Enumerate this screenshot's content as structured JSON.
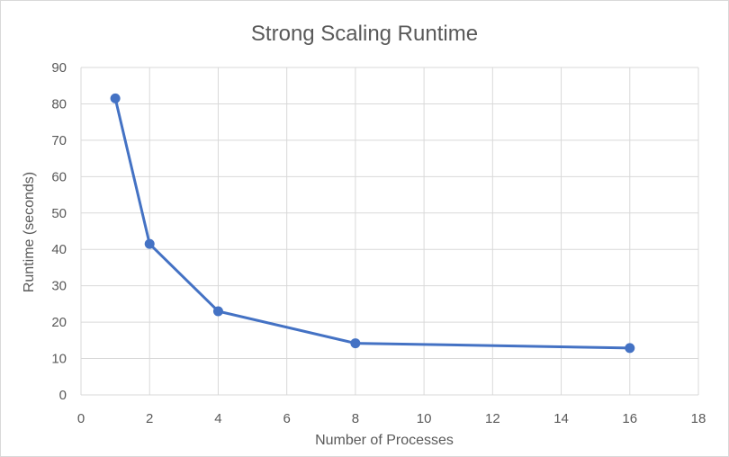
{
  "chart_data": {
    "type": "scatter",
    "title": "Strong Scaling Runtime",
    "xlabel": "Number of Processes",
    "ylabel": "Runtime (seconds)",
    "xlim": [
      0,
      18
    ],
    "ylim": [
      0,
      90
    ],
    "x_ticks": [
      0,
      2,
      4,
      6,
      8,
      10,
      12,
      14,
      16,
      18
    ],
    "y_ticks": [
      0,
      10,
      20,
      30,
      40,
      50,
      60,
      70,
      80,
      90
    ],
    "grid": true,
    "legend": "none",
    "series": [
      {
        "x": [
          1,
          2,
          4,
          8,
          16
        ],
        "y": [
          81.5,
          41.5,
          23.0,
          14.2,
          12.9
        ],
        "color": "#4472c4",
        "style": "lines-and-markers"
      }
    ]
  }
}
